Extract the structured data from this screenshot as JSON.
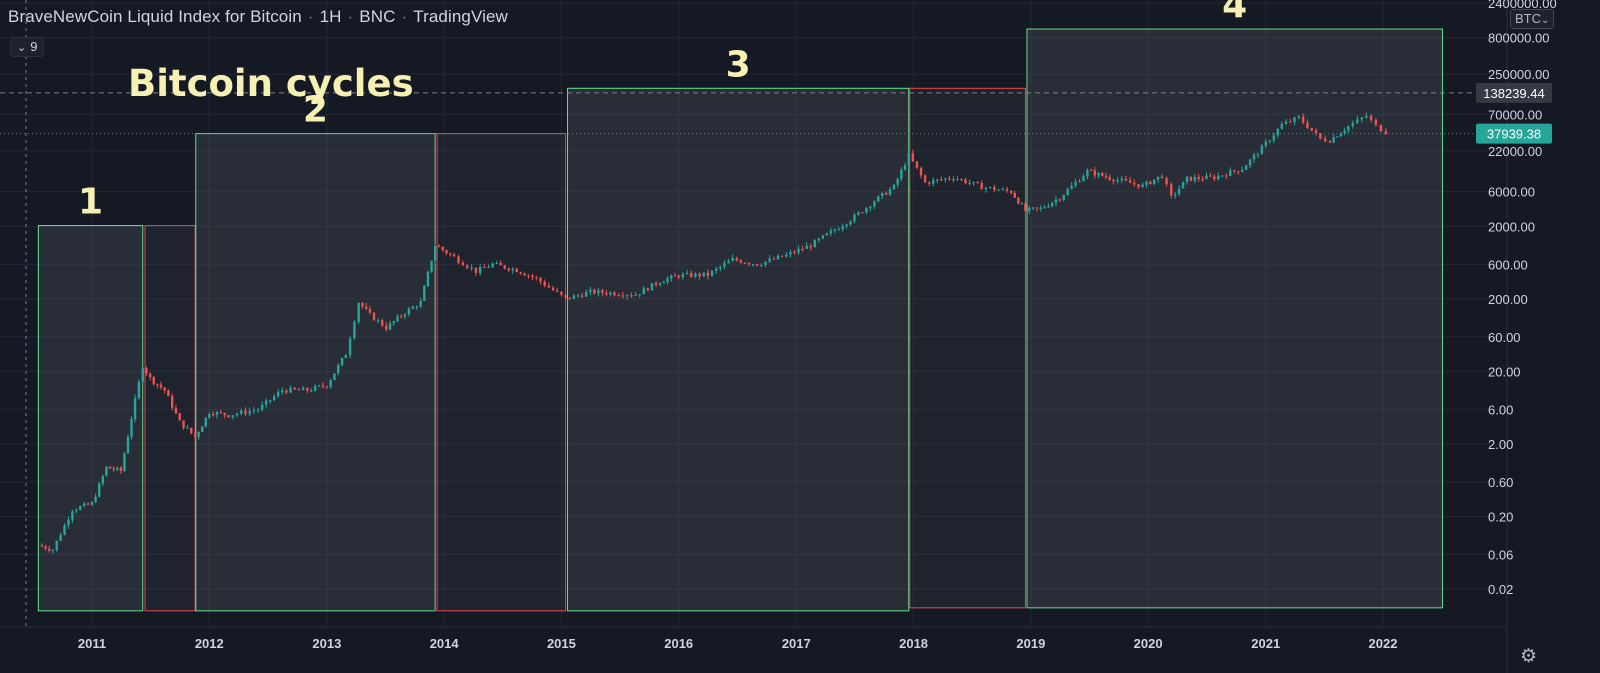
{
  "header": {
    "symbol": "BraveNewCoin Liquid Index for Bitcoin",
    "interval": "1H",
    "exchange": "BNC",
    "source": "TradingView"
  },
  "indicators_toggle": {
    "count": "9"
  },
  "currency_button": "BTC",
  "chart_data": {
    "type": "line",
    "title": "Bitcoin cycles",
    "xlabel": "",
    "ylabel": "",
    "y_scale": "log",
    "grid": true,
    "x_ticks": [
      "2011",
      "2012",
      "2013",
      "2014",
      "2015",
      "2016",
      "2017",
      "2018",
      "2019",
      "2020",
      "2021",
      "2022"
    ],
    "y_ticks": [
      "2400000.00",
      "800000.00",
      "250000.00",
      "70000.00",
      "22000.00",
      "6000.00",
      "2000.00",
      "600.00",
      "200.00",
      "60.00",
      "20.00",
      "6.00",
      "2.00",
      "0.60",
      "0.20",
      "0.06",
      "0.02"
    ],
    "price_labels": {
      "crosshair": "138239.44",
      "last_price": "37939.38"
    },
    "colors": {
      "up": "#26a69a",
      "down": "#ef5350",
      "bull_box": "#66e08a",
      "bear_box": "#e5484d"
    },
    "series": [
      {
        "x": [
          "2010-07-18",
          "2010-09-01",
          "2010-11-01",
          "2011-01-01",
          "2011-02-15",
          "2011-04-01",
          "2011-05-15",
          "2011-06-08",
          "2011-07-01",
          "2011-08-15",
          "2011-10-01",
          "2011-11-18",
          "2012-01-01",
          "2012-03-01",
          "2012-06-01",
          "2012-08-15",
          "2012-11-01",
          "2013-01-01",
          "2013-03-01",
          "2013-04-10",
          "2013-05-15",
          "2013-07-05",
          "2013-09-01",
          "2013-10-20",
          "2013-12-04",
          "2014-02-01",
          "2014-04-10",
          "2014-06-01",
          "2014-08-15",
          "2014-10-15",
          "2015-01-14",
          "2015-04-01",
          "2015-06-15",
          "2015-08-20",
          "2015-11-04",
          "2016-01-01",
          "2016-04-01",
          "2016-06-17",
          "2016-09-01",
          "2016-12-01",
          "2017-02-15",
          "2017-05-01",
          "2017-07-01",
          "2017-09-01",
          "2017-11-01",
          "2017-12-17",
          "2018-02-06",
          "2018-05-05",
          "2018-08-01",
          "2018-11-01",
          "2018-12-15",
          "2019-02-01",
          "2019-04-01",
          "2019-06-26",
          "2019-09-15",
          "2019-12-15",
          "2020-02-13",
          "2020-03-13",
          "2020-05-01",
          "2020-07-25",
          "2020-10-20",
          "2020-12-20",
          "2021-02-20",
          "2021-04-14",
          "2021-06-20",
          "2021-07-20",
          "2021-09-15",
          "2021-11-10",
          "2021-12-10",
          "2022-01-10"
        ],
        "y": [
          0.08,
          0.07,
          0.25,
          0.3,
          0.95,
          0.85,
          8,
          24,
          16,
          11,
          4,
          2.5,
          5.5,
          5,
          6,
          11,
          11,
          13,
          35,
          180,
          120,
          80,
          130,
          180,
          1100,
          750,
          480,
          600,
          500,
          380,
          200,
          250,
          240,
          230,
          350,
          420,
          430,
          700,
          600,
          800,
          1100,
          1800,
          2700,
          4500,
          7000,
          19000,
          8000,
          9500,
          7000,
          6000,
          3300,
          3500,
          5000,
          11500,
          9000,
          7200,
          10000,
          5000,
          9000,
          9500,
          12500,
          24000,
          50000,
          63000,
          32000,
          31000,
          48000,
          67000,
          48000,
          40000
        ]
      }
    ],
    "cycle_boxes": [
      {
        "label": "1",
        "phase": "bull",
        "start": "2010-07-18",
        "end": "2011-06-08",
        "low": 0.01,
        "high": 2050
      },
      {
        "phase": "bear",
        "start": "2011-06-15",
        "end": "2011-11-18",
        "low": 0.01,
        "high": 2050
      },
      {
        "label": "2",
        "phase": "bull",
        "start": "2011-11-20",
        "end": "2013-12-04",
        "low": 0.01,
        "high": 38000
      },
      {
        "phase": "bear",
        "start": "2013-12-10",
        "end": "2015-01-14",
        "low": 0.01,
        "high": 38000
      },
      {
        "label": "3",
        "phase": "bull",
        "start": "2015-01-20",
        "end": "2017-12-17",
        "low": 0.01,
        "high": 160000
      },
      {
        "phase": "bear",
        "start": "2017-12-20",
        "end": "2018-12-15",
        "low": 0.011,
        "high": 160000
      },
      {
        "label": "4",
        "phase": "bull",
        "start": "2018-12-20",
        "end": "2022-07-05",
        "low": 0.011,
        "high": 1050000
      }
    ]
  }
}
